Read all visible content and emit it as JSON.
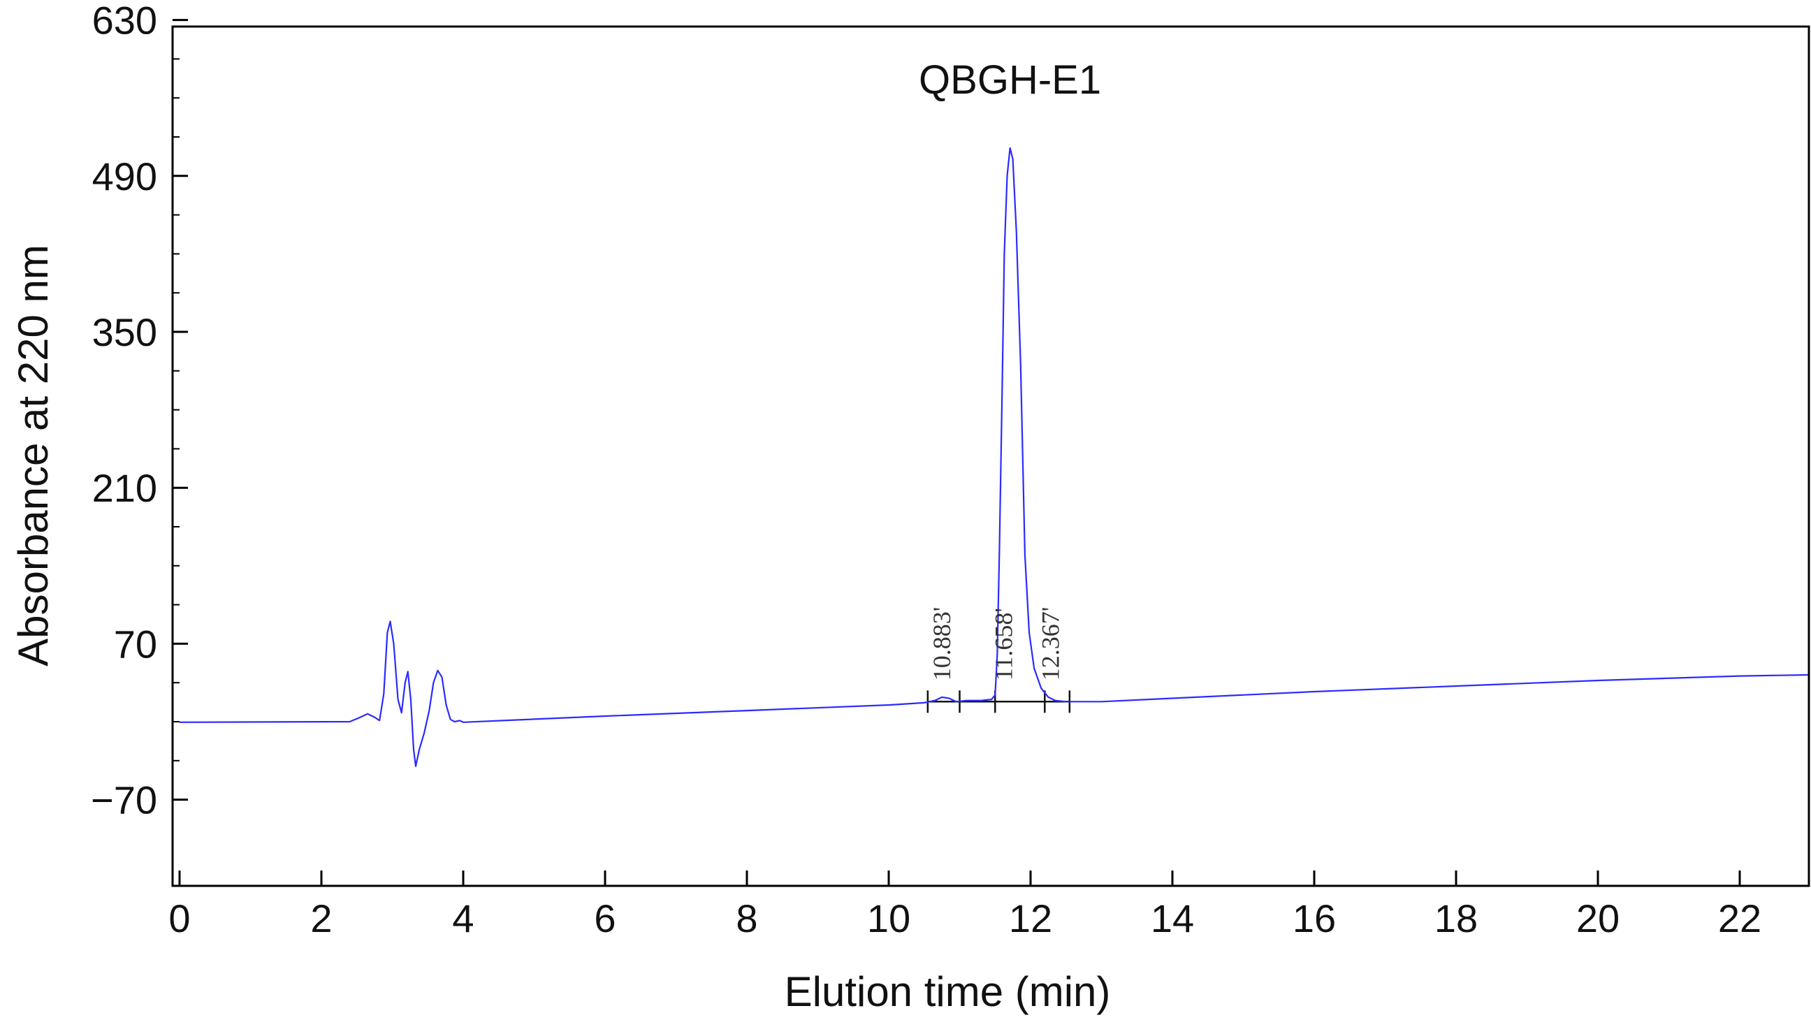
{
  "chart_data": {
    "type": "line",
    "title": "",
    "xlabel": "Elution time (min)",
    "ylabel": "Absorbance at 220 nm",
    "xlim": [
      0,
      23
    ],
    "ylim": [
      -77,
      700
    ],
    "x_ticks": [
      0,
      2,
      4,
      6,
      8,
      10,
      12,
      14,
      16,
      18,
      20,
      22
    ],
    "y_ticks": [
      -70,
      70,
      210,
      350,
      490,
      630
    ],
    "y_tick_labels": [
      "−70",
      "70",
      "210",
      "350",
      "490",
      "630"
    ],
    "grid": false,
    "line_color": "#2b2bff",
    "series": [
      {
        "points": [
          [
            0.0,
            -0.5
          ],
          [
            2.4,
            0.0
          ],
          [
            2.55,
            4
          ],
          [
            2.65,
            7
          ],
          [
            2.75,
            4
          ],
          [
            2.82,
            1
          ],
          [
            2.88,
            25
          ],
          [
            2.93,
            80
          ],
          [
            2.97,
            90
          ],
          [
            3.02,
            70
          ],
          [
            3.08,
            20
          ],
          [
            3.13,
            8
          ],
          [
            3.18,
            35
          ],
          [
            3.22,
            45
          ],
          [
            3.26,
            20
          ],
          [
            3.3,
            -25
          ],
          [
            3.33,
            -40
          ],
          [
            3.38,
            -25
          ],
          [
            3.45,
            -10
          ],
          [
            3.52,
            10
          ],
          [
            3.58,
            35
          ],
          [
            3.64,
            46
          ],
          [
            3.7,
            40
          ],
          [
            3.76,
            15
          ],
          [
            3.82,
            2
          ],
          [
            3.88,
            0
          ],
          [
            3.95,
            1
          ],
          [
            4.0,
            -0.5
          ],
          [
            6.0,
            5
          ],
          [
            8.0,
            10
          ],
          [
            10.0,
            15
          ],
          [
            10.5,
            17
          ],
          [
            10.65,
            19
          ],
          [
            10.75,
            22
          ],
          [
            10.85,
            21
          ],
          [
            10.95,
            18
          ],
          [
            11.1,
            19
          ],
          [
            11.3,
            19
          ],
          [
            11.45,
            20
          ],
          [
            11.5,
            24
          ],
          [
            11.53,
            60
          ],
          [
            11.56,
            150
          ],
          [
            11.6,
            300
          ],
          [
            11.63,
            420
          ],
          [
            11.67,
            490
          ],
          [
            11.71,
            515
          ],
          [
            11.75,
            505
          ],
          [
            11.8,
            440
          ],
          [
            11.86,
            320
          ],
          [
            11.92,
            150
          ],
          [
            11.98,
            80
          ],
          [
            12.05,
            48
          ],
          [
            12.15,
            30
          ],
          [
            12.25,
            22
          ],
          [
            12.35,
            19
          ],
          [
            12.5,
            18
          ],
          [
            13.0,
            18
          ],
          [
            14.0,
            21
          ],
          [
            16.0,
            27
          ],
          [
            18.0,
            32
          ],
          [
            20.0,
            37
          ],
          [
            22.0,
            41
          ],
          [
            23.0,
            42
          ]
        ]
      }
    ],
    "annotations": {
      "peak_label": "QBGH-E1",
      "retention_times": [
        "10.883'",
        "11.658'",
        "12.367'"
      ],
      "retention_positions": [
        10.75,
        11.62,
        12.28
      ],
      "integration_baseline": [
        10.55,
        12.55
      ],
      "integration_ticks": [
        10.55,
        11.0,
        11.5,
        12.2,
        12.55
      ],
      "peak_apex": [
        11.71,
        515
      ]
    }
  }
}
